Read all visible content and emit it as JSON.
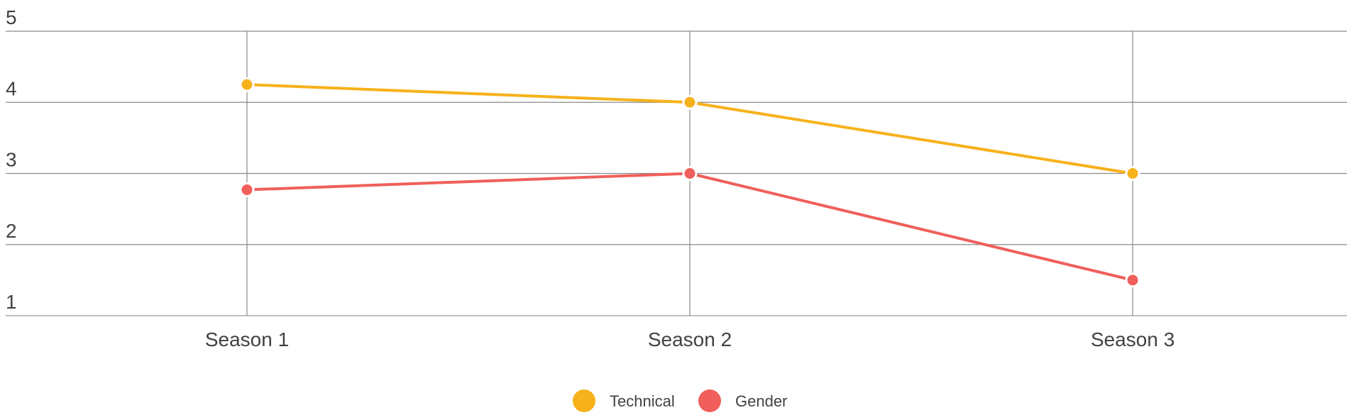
{
  "chart_data": {
    "type": "line",
    "categories": [
      "Season 1",
      "Season 2",
      "Season 3"
    ],
    "series": [
      {
        "name": "Technical",
        "color": "#F7B11B",
        "values": [
          4.25,
          4.0,
          3.0
        ]
      },
      {
        "name": "Gender",
        "color": "#F05F5B",
        "values": [
          2.77,
          3.0,
          1.5
        ]
      }
    ],
    "yticks": [
      1,
      2,
      3,
      4,
      5
    ],
    "ylim": [
      1,
      5
    ],
    "grid": true,
    "legend": "bottom-center"
  }
}
